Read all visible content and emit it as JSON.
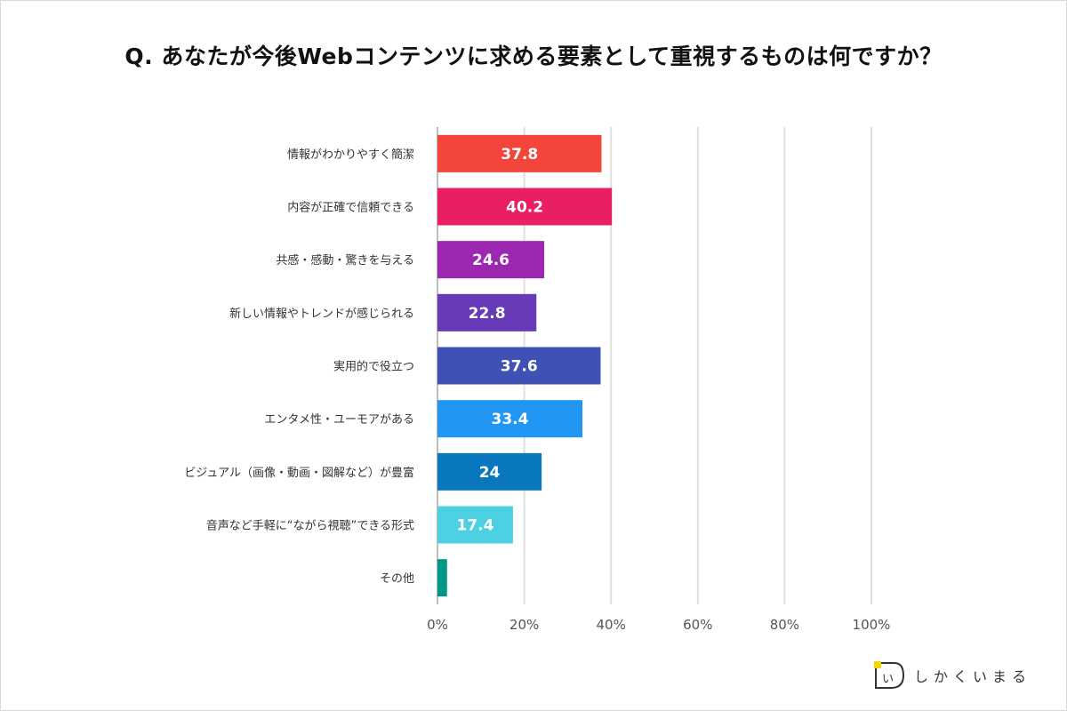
{
  "title": "Q. あなたが今後Webコンテンツに求める要素として重視するものは何ですか？",
  "brand": {
    "name": "しかくいまる",
    "logo_glyph": "い"
  },
  "chart_data": {
    "type": "bar",
    "orientation": "horizontal",
    "categories": [
      "情報がわかりやすく簡潔",
      "内容が正確で信頼できる",
      "共感・感動・驚きを与える",
      "新しい情報やトレンドが感じられる",
      "実用的で役立つ",
      "エンタメ性・ユーモアがある",
      "ビジュアル（画像・動画・図解など）が豊富",
      "音声など手軽に“ながら視聴”できる形式",
      "その他"
    ],
    "values": [
      37.8,
      40.2,
      24.6,
      22.8,
      37.6,
      33.4,
      24,
      17.4,
      2.2
    ],
    "data_labels": [
      "37.8",
      "40.2",
      "24.6",
      "22.8",
      "37.6",
      "33.4",
      "24",
      "17.4",
      ""
    ],
    "colors": [
      "#f4453b",
      "#e91e63",
      "#9c27b0",
      "#673ab7",
      "#3f51b5",
      "#2196f3",
      "#0877be",
      "#4dd0e1",
      "#009688"
    ],
    "xlim": [
      0,
      100
    ],
    "x_ticks": [
      0,
      20,
      40,
      60,
      80,
      100
    ],
    "x_tick_labels": [
      "0%",
      "20%",
      "40%",
      "60%",
      "80%",
      "100%"
    ],
    "grid": true,
    "legend": "none"
  }
}
